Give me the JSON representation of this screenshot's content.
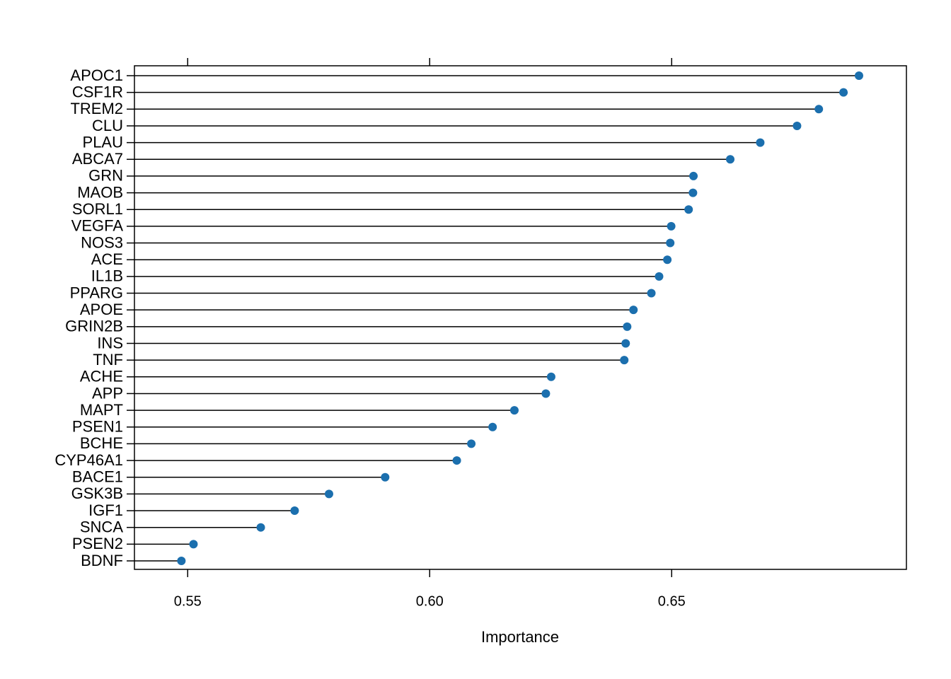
{
  "chart_data": {
    "type": "lollipop",
    "orientation": "horizontal",
    "x_label": "Importance",
    "categories": [
      "APOC1",
      "CSF1R",
      "TREM2",
      "CLU",
      "PLAU",
      "ABCA7",
      "GRN",
      "MAOB",
      "SORL1",
      "VEGFA",
      "NOS3",
      "ACE",
      "IL1B",
      "PPARG",
      "APOE",
      "GRIN2B",
      "INS",
      "TNF",
      "ACHE",
      "APP",
      "MAPT",
      "PSEN1",
      "BCHE",
      "CYP46A1",
      "BACE1",
      "GSK3B",
      "IGF1",
      "SNCA",
      "PSEN2",
      "BDNF"
    ],
    "values": [
      0.6887,
      0.6855,
      0.6804,
      0.6759,
      0.6683,
      0.6621,
      0.6545,
      0.6544,
      0.6535,
      0.6499,
      0.6497,
      0.6491,
      0.6474,
      0.6458,
      0.6421,
      0.6408,
      0.6405,
      0.6402,
      0.6251,
      0.624,
      0.6175,
      0.613,
      0.6086,
      0.6056,
      0.5908,
      0.5792,
      0.5721,
      0.5651,
      0.5512,
      0.5487
    ],
    "color": "#1b6fae",
    "xlim": [
      0.539,
      0.6985
    ],
    "xticks": [
      0.55,
      {
        "value": 0.6,
        "label": "0.60"
      },
      0.65
    ]
  }
}
